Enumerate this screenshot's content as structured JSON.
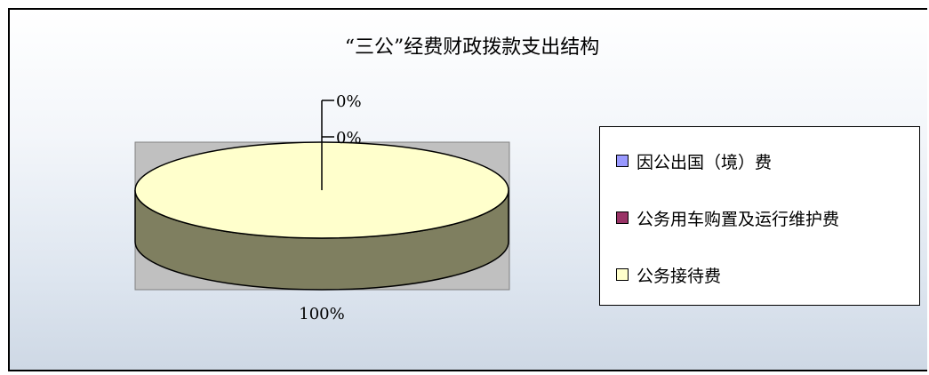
{
  "chart_data": {
    "type": "pie",
    "title": "“三公”经费财政拨款支出结构",
    "style": "3d",
    "categories": [
      "因公出国（境）费",
      "公务用车购置及运行维护费",
      "公务接待费"
    ],
    "values": [
      0,
      0,
      100
    ],
    "data_labels": [
      "0%",
      "0%",
      "100%"
    ],
    "colors": [
      "#9999ff",
      "#993366",
      "#ffffcc"
    ],
    "side_color": "#7f7f60",
    "plot_background": "#c0c0c0",
    "legend_position": "right"
  }
}
